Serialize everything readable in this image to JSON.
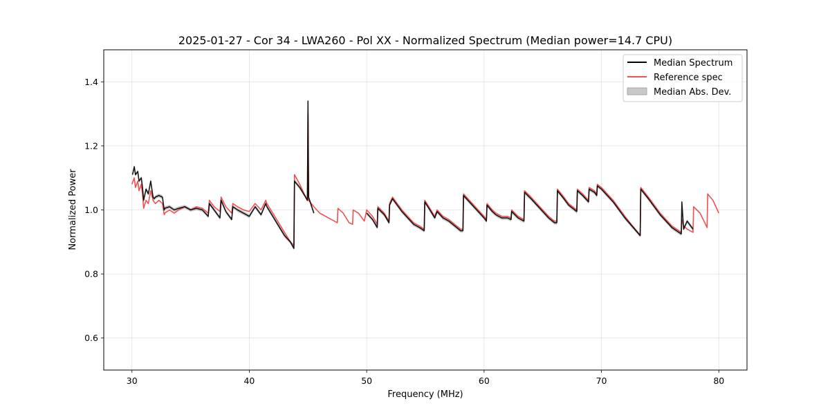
{
  "chart_data": {
    "type": "line",
    "title": "2025-01-27 - Cor 34 - LWA260 - Pol XX - Normalized Spectrum (Median power=14.7 CPU)",
    "xlabel": "Frequency (MHz)",
    "ylabel": "Normalized Power",
    "xlim": [
      27.6,
      82.4
    ],
    "ylim": [
      0.5,
      1.5
    ],
    "xticks": [
      30,
      40,
      50,
      60,
      70,
      80
    ],
    "yticks": [
      0.6,
      0.8,
      1.0,
      1.2,
      1.4
    ],
    "xtick_labels": [
      "30",
      "40",
      "50",
      "60",
      "70",
      "80"
    ],
    "ytick_labels": [
      "0.6",
      "0.8",
      "1.0",
      "1.2",
      "1.4"
    ],
    "grid": true,
    "legend_position": "top-right",
    "legend": [
      {
        "name": "Median Spectrum",
        "color": "#000000",
        "kind": "line"
      },
      {
        "name": "Reference spec",
        "color": "#f05050",
        "kind": "line"
      },
      {
        "name": "Median Abs. Dev.",
        "color": "#c8c8c8",
        "kind": "patch"
      }
    ],
    "series": [
      {
        "name": "Reference spec",
        "color": "#f05050",
        "x": [
          30.0,
          30.2,
          30.3,
          30.5,
          30.6,
          30.8,
          30.9,
          31.0,
          31.2,
          31.4,
          31.6,
          31.8,
          31.9,
          32.0,
          32.3,
          32.6,
          32.75,
          32.8,
          33.2,
          33.6,
          34.0,
          34.5,
          35.0,
          35.5,
          36.0,
          36.5,
          36.6,
          37.0,
          37.5,
          37.6,
          38.0,
          38.5,
          38.6,
          39.0,
          39.5,
          40.0,
          40.5,
          41.0,
          41.4,
          41.5,
          42.0,
          42.5,
          43.0,
          43.5,
          43.8,
          43.85,
          44.3,
          44.8,
          44.95,
          45.0,
          45.05,
          45.5,
          46.0,
          46.5,
          47.0,
          47.5,
          47.55,
          48.0,
          48.5,
          48.8,
          48.85,
          49.3,
          49.8,
          50.0,
          50.5,
          50.9,
          50.95,
          51.5,
          51.9,
          51.95,
          52.2,
          52.6,
          53.0,
          53.5,
          54.0,
          54.5,
          54.9,
          54.95,
          55.3,
          55.8,
          56.0,
          56.5,
          57.0,
          57.5,
          58.0,
          58.2,
          58.25,
          59.0,
          60.0,
          60.2,
          60.25,
          60.7,
          61.0,
          61.5,
          62.0,
          62.3,
          62.35,
          62.9,
          63.4,
          63.45,
          64.0,
          64.5,
          65.0,
          65.5,
          66.0,
          66.2,
          66.25,
          66.8,
          67.2,
          67.9,
          67.95,
          68.4,
          68.9,
          68.95,
          69.4,
          69.6,
          69.65,
          70.0,
          71.0,
          72.0,
          73.3,
          73.35,
          74.0,
          75.0,
          76.0,
          76.6,
          76.8,
          76.85,
          77.0,
          77.3,
          77.8,
          77.85,
          78.4,
          79.0,
          79.05,
          79.5,
          80.0
        ],
        "y": [
          1.08,
          1.1,
          1.07,
          1.09,
          1.06,
          1.08,
          1.05,
          1.005,
          1.03,
          1.02,
          1.06,
          1.03,
          1.025,
          1.02,
          1.03,
          1.02,
          0.985,
          0.99,
          1.0,
          0.99,
          1.0,
          1.01,
          1.0,
          1.01,
          1.005,
          0.99,
          1.03,
          1.01,
          0.995,
          1.04,
          1.01,
          0.99,
          1.02,
          1.01,
          1.0,
          0.995,
          1.02,
          1.0,
          1.03,
          1.02,
          0.99,
          0.96,
          0.93,
          0.9,
          0.89,
          1.11,
          1.08,
          1.04,
          1.03,
          1.3,
          1.03,
          1.01,
          0.99,
          0.98,
          0.97,
          0.96,
          1.005,
          0.99,
          0.96,
          0.955,
          1.0,
          0.99,
          0.965,
          1.0,
          0.98,
          0.955,
          1.01,
          0.99,
          0.965,
          1.02,
          1.04,
          1.02,
          1.0,
          0.98,
          0.96,
          0.95,
          0.94,
          1.03,
          1.01,
          0.98,
          1.0,
          0.98,
          0.97,
          0.955,
          0.94,
          0.94,
          1.05,
          1.02,
          0.98,
          0.97,
          1.02,
          1.0,
          0.99,
          0.98,
          0.98,
          0.975,
          1.0,
          0.98,
          0.97,
          1.06,
          1.04,
          1.02,
          1.0,
          0.98,
          0.965,
          0.965,
          1.065,
          1.04,
          1.02,
          1.0,
          1.065,
          1.05,
          1.03,
          1.07,
          1.06,
          1.05,
          1.08,
          1.07,
          1.03,
          0.98,
          0.92,
          1.07,
          1.04,
          0.99,
          0.95,
          0.935,
          0.93,
          0.97,
          0.95,
          0.94,
          0.93,
          1.01,
          0.99,
          0.945,
          1.05,
          1.03,
          0.99
        ]
      },
      {
        "name": "Median Spectrum",
        "color": "#000000",
        "x": [
          30.05,
          30.2,
          30.3,
          30.5,
          30.6,
          30.8,
          30.9,
          31.0,
          31.2,
          31.4,
          31.6,
          31.8,
          31.9,
          32.0,
          32.3,
          32.6,
          32.75,
          32.8,
          33.2,
          33.6,
          34.0,
          34.5,
          35.0,
          35.5,
          36.0,
          36.5,
          36.6,
          37.0,
          37.5,
          37.6,
          38.0,
          38.5,
          38.6,
          39.0,
          39.5,
          40.0,
          40.5,
          41.0,
          41.4,
          41.5,
          42.0,
          42.5,
          43.0,
          43.5,
          43.8,
          43.85,
          44.3,
          44.8,
          44.95,
          45.0,
          45.05,
          45.5
        ],
        "y": [
          1.11,
          1.135,
          1.11,
          1.12,
          1.09,
          1.1,
          1.07,
          1.03,
          1.065,
          1.05,
          1.09,
          1.04,
          1.035,
          1.04,
          1.045,
          1.04,
          1.0,
          1.005,
          1.01,
          1.0,
          1.005,
          1.01,
          1.0,
          1.005,
          1.0,
          0.98,
          1.02,
          1.0,
          0.975,
          1.03,
          0.995,
          0.97,
          1.01,
          1.0,
          0.99,
          0.98,
          1.01,
          0.985,
          1.02,
          1.01,
          0.98,
          0.95,
          0.92,
          0.9,
          0.88,
          1.09,
          1.07,
          1.04,
          1.03,
          1.34,
          1.04,
          0.99
        ]
      },
      {
        "name": "Median Spectrum",
        "color": "#000000",
        "x": [
          50.0,
          50.5,
          50.9,
          50.95,
          51.5,
          51.9,
          51.95,
          52.2,
          52.6,
          53.0,
          53.5,
          54.0,
          54.5,
          54.9,
          54.95,
          55.3,
          55.8,
          56.0,
          56.5,
          57.0,
          57.5,
          58.0,
          58.2,
          58.25,
          59.0,
          60.0,
          60.2,
          60.25,
          60.7,
          61.0,
          61.5,
          62.0,
          62.3,
          62.35,
          62.9,
          63.4,
          63.45,
          64.0,
          64.5,
          65.0,
          65.5,
          66.0,
          66.2,
          66.25,
          66.8,
          67.2,
          67.9,
          67.95,
          68.4,
          68.9,
          68.95,
          69.4,
          69.6,
          69.65,
          70.0,
          71.0,
          72.0,
          73.3,
          73.35,
          74.0,
          75.0,
          76.0,
          76.6,
          76.8,
          76.85,
          77.0,
          77.3,
          77.8
        ],
        "y": [
          0.99,
          0.97,
          0.945,
          1.005,
          0.985,
          0.96,
          1.015,
          1.035,
          1.015,
          0.995,
          0.975,
          0.955,
          0.945,
          0.935,
          1.025,
          1.005,
          0.975,
          0.995,
          0.975,
          0.965,
          0.95,
          0.935,
          0.935,
          1.045,
          1.015,
          0.975,
          0.965,
          1.015,
          0.995,
          0.985,
          0.975,
          0.975,
          0.97,
          0.995,
          0.975,
          0.965,
          1.055,
          1.035,
          1.015,
          0.995,
          0.975,
          0.96,
          0.96,
          1.06,
          1.035,
          1.015,
          0.995,
          1.06,
          1.045,
          1.025,
          1.065,
          1.055,
          1.045,
          1.075,
          1.065,
          1.025,
          0.975,
          0.92,
          1.065,
          1.035,
          0.985,
          0.945,
          0.93,
          0.925,
          1.025,
          0.94,
          0.965,
          0.94
        ]
      }
    ]
  }
}
